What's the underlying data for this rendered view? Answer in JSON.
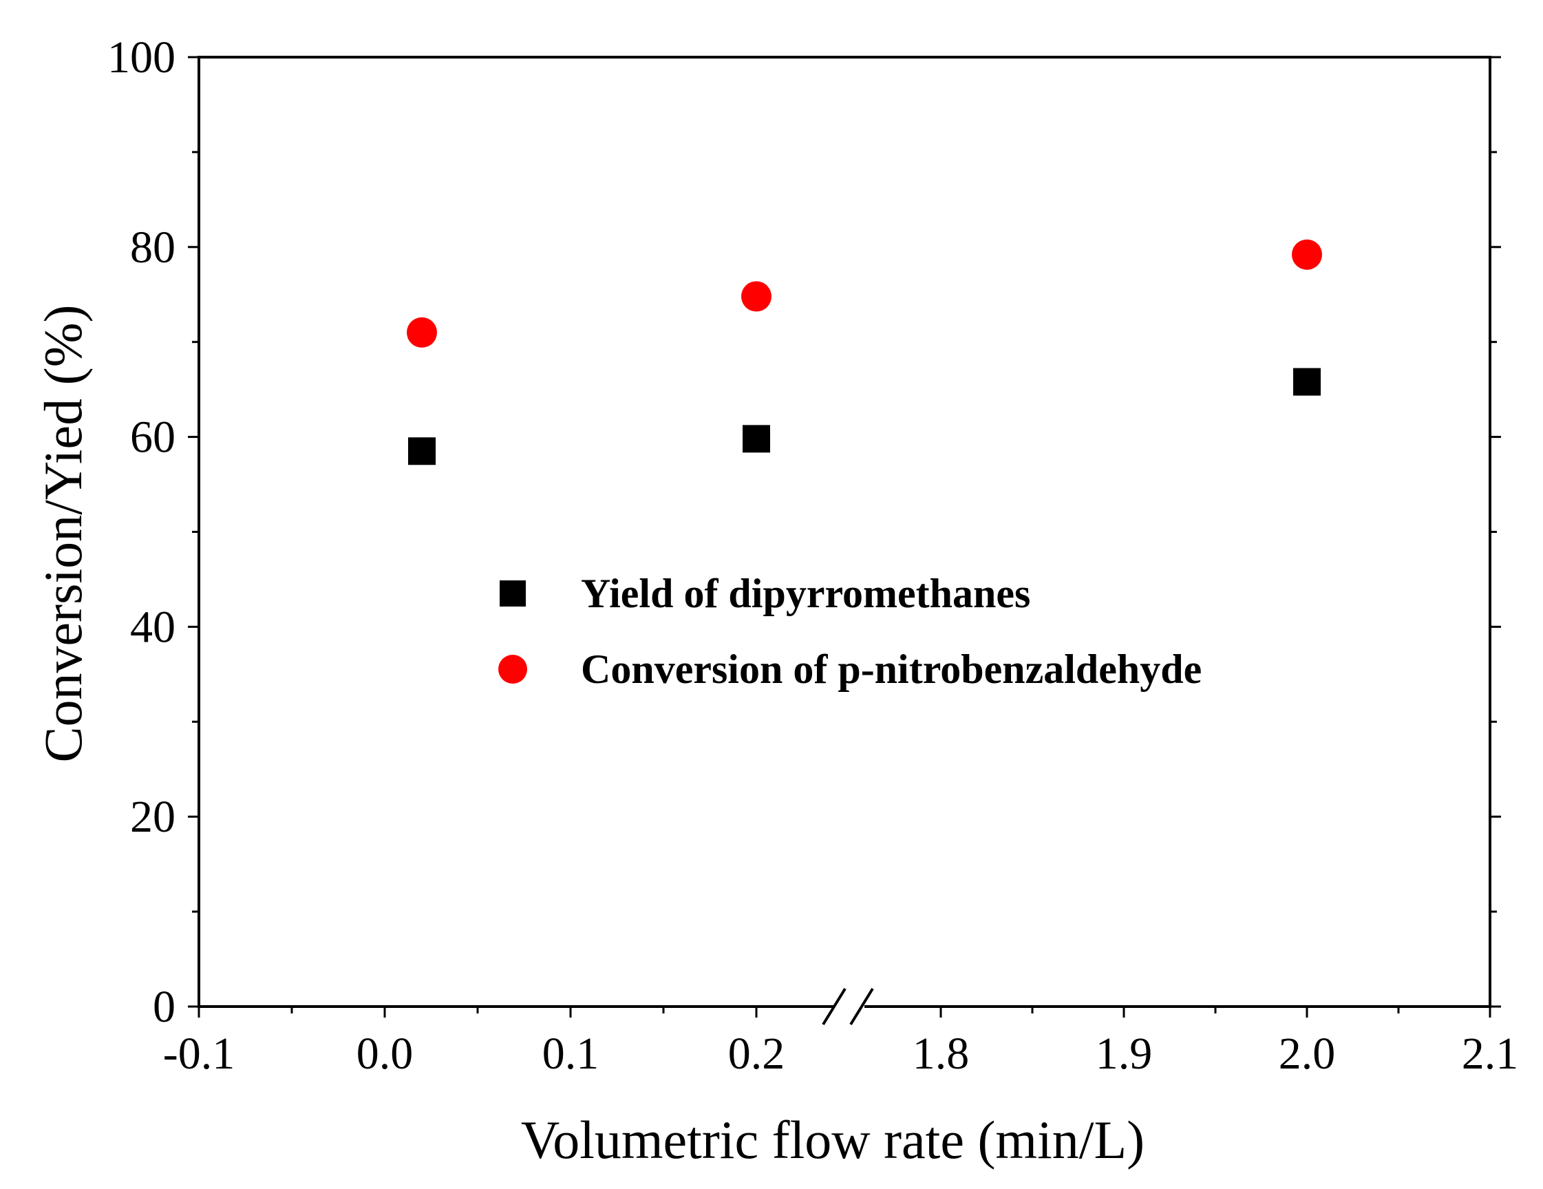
{
  "chart_data": {
    "type": "scatter",
    "title": "",
    "xlabel": "Volumetric flow rate (min/L)",
    "ylabel": "Conversion/Yied  (%)",
    "x_axis": {
      "broken": true,
      "segments": [
        {
          "range": [
            -0.1,
            0.25
          ],
          "ticks": [
            "-0.1",
            "0.0",
            "0.1",
            "0.2"
          ]
        },
        {
          "range": [
            1.75,
            2.1
          ],
          "ticks": [
            "1.8",
            "1.9",
            "2.0",
            "2.1"
          ]
        }
      ]
    },
    "y_axis": {
      "range": [
        0,
        100
      ],
      "ticks": [
        "0",
        "20",
        "40",
        "60",
        "80",
        "100"
      ]
    },
    "grid": false,
    "legend_position": "center",
    "series": [
      {
        "name": "Yield of dipyrromethanes",
        "marker": "square",
        "color": "#000000",
        "x": [
          0.02,
          0.2,
          2.0
        ],
        "y": [
          58.5,
          59.8,
          65.8
        ]
      },
      {
        "name": "Conversion of p-nitrobenzaldehyde",
        "marker": "circle",
        "color": "#ff0000",
        "x": [
          0.02,
          0.2,
          2.0
        ],
        "y": [
          71.0,
          74.8,
          79.2
        ]
      }
    ]
  }
}
